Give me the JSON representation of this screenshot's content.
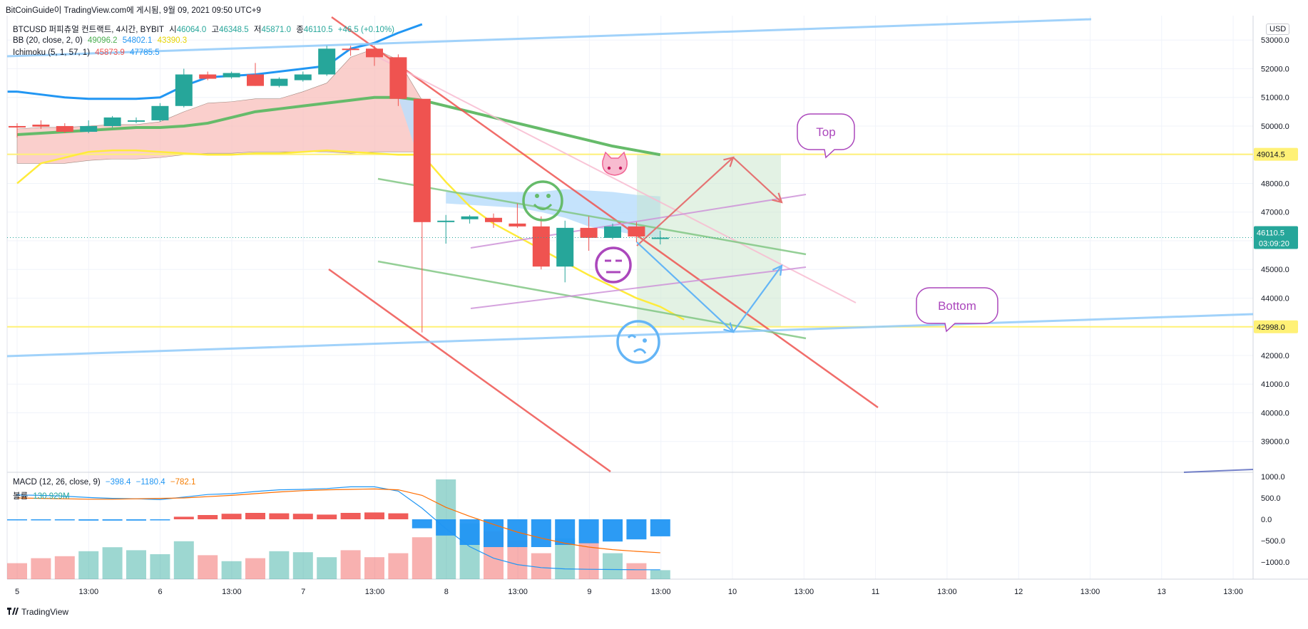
{
  "header": {
    "source": "BitCoinGuide이 TradingView.com에 게시됨, 9월 09, 2021 09:50 UTC+9"
  },
  "legend": {
    "symbol": "BTCUSD 퍼피츄얼 컨트랙트, 4시간, BYBIT",
    "open_label": "시",
    "open": "46064.0",
    "high_label": "고",
    "high": "46348.5",
    "low_label": "저",
    "low": "45871.0",
    "close_label": "종",
    "close": "46110.5",
    "change": "+46.5 (+0.10%)",
    "bb_name": "BB (20, close, 2, 0)",
    "bb_basis": "49096.2",
    "bb_upper": "54802.1",
    "bb_lower": "43390.3",
    "ichimoku_name": "Ichimoku (5, 1, 57, 1)",
    "ich_a": "45873.9",
    "ich_b": "47785.5",
    "macd_name": "MACD (12, 26, close, 9)",
    "macd_hist": "−398.4",
    "macd_line": "−1180.4",
    "macd_signal": "−782.1",
    "volume_name": "볼륨",
    "volume": "130.929M"
  },
  "currency_badge": "USD",
  "price_tags": {
    "last": "46110.5",
    "countdown": "03:09:20",
    "top_level": "49014.5",
    "bottom_level": "42998.0"
  },
  "annotations": {
    "top_label": "Top",
    "bottom_label": "Bottom"
  },
  "colors": {
    "up": "#26a69a",
    "down": "#ef5350",
    "bb": "#2196f3",
    "ichimoku_green": "#4caf50",
    "ichimoku_yellow": "#ffeb3b",
    "level": "#fff176",
    "cloud": "#f8bbb7",
    "zone": "#c8e6c9",
    "callout": "#ab47bc"
  },
  "chart_data": {
    "type": "candlestick",
    "price_axis": {
      "ticks": [
        53000,
        52000,
        51000,
        50000,
        49000,
        48000,
        47000,
        46000,
        45000,
        44000,
        43000,
        42000,
        41000,
        40000,
        39000
      ],
      "tick_labels": [
        "53000.0",
        "52000.0",
        "51000.0",
        "50000.0",
        "49000.0",
        "48000.0",
        "47000.0",
        "46000.0",
        "45000.0",
        "44000.0",
        "43000.0",
        "42000.0",
        "41000.0",
        "40000.0",
        "39000.0"
      ],
      "range": [
        37950,
        53850
      ]
    },
    "time_axis": {
      "labels": [
        "5",
        "13:00",
        "6",
        "13:00",
        "7",
        "13:00",
        "8",
        "13:00",
        "9",
        "13:00",
        "10",
        "13:00",
        "11",
        "13:00",
        "12",
        "13:00",
        "13",
        "13:00"
      ]
    },
    "candles": [
      {
        "o": 50000,
        "h": 50100,
        "l": 49600,
        "c": 49950
      },
      {
        "o": 50050,
        "h": 50200,
        "l": 49900,
        "c": 49980
      },
      {
        "o": 50000,
        "h": 50100,
        "l": 49750,
        "c": 49800
      },
      {
        "o": 49800,
        "h": 50200,
        "l": 49750,
        "c": 50000
      },
      {
        "o": 50000,
        "h": 50350,
        "l": 49950,
        "c": 50300
      },
      {
        "o": 50200,
        "h": 50300,
        "l": 50100,
        "c": 50200
      },
      {
        "o": 50200,
        "h": 50800,
        "l": 50150,
        "c": 50700
      },
      {
        "o": 50700,
        "h": 52000,
        "l": 50650,
        "c": 51800
      },
      {
        "o": 51800,
        "h": 51900,
        "l": 51600,
        "c": 51650
      },
      {
        "o": 51700,
        "h": 51900,
        "l": 51650,
        "c": 51850
      },
      {
        "o": 51800,
        "h": 52200,
        "l": 51400,
        "c": 51400
      },
      {
        "o": 51400,
        "h": 51700,
        "l": 51350,
        "c": 51650
      },
      {
        "o": 51600,
        "h": 51900,
        "l": 51550,
        "c": 51800
      },
      {
        "o": 51800,
        "h": 52800,
        "l": 51750,
        "c": 52700
      },
      {
        "o": 52700,
        "h": 52800,
        "l": 52450,
        "c": 52650
      },
      {
        "o": 52700,
        "h": 52800,
        "l": 52100,
        "c": 52400
      },
      {
        "o": 52400,
        "h": 52500,
        "l": 50700,
        "c": 50950
      },
      {
        "o": 50950,
        "h": 50950,
        "l": 42800,
        "c": 46650
      },
      {
        "o": 46650,
        "h": 46900,
        "l": 45900,
        "c": 46700
      },
      {
        "o": 46750,
        "h": 46900,
        "l": 46600,
        "c": 46850
      },
      {
        "o": 46800,
        "h": 46950,
        "l": 46450,
        "c": 46650
      },
      {
        "o": 46600,
        "h": 47300,
        "l": 46450,
        "c": 46500
      },
      {
        "o": 46500,
        "h": 46850,
        "l": 45000,
        "c": 45100
      },
      {
        "o": 45100,
        "h": 46700,
        "l": 44550,
        "c": 46450
      },
      {
        "o": 46450,
        "h": 46850,
        "l": 45650,
        "c": 46100
      },
      {
        "o": 46100,
        "h": 46600,
        "l": 46050,
        "c": 46500
      },
      {
        "o": 46500,
        "h": 46650,
        "l": 45950,
        "c": 46150
      },
      {
        "o": 46064,
        "h": 46348.5,
        "l": 45871,
        "c": 46110.5
      }
    ],
    "macd_axis": {
      "ticks": [
        1000,
        500,
        0,
        -500,
        -1000
      ],
      "tick_labels": [
        "1000.0",
        "500.0",
        "0.0",
        "−500.0",
        "−1000.0"
      ],
      "range": [
        -1400,
        1100
      ]
    },
    "macd_histogram": [
      -10,
      -15,
      -20,
      -30,
      -30,
      -30,
      -20,
      60,
      100,
      130,
      150,
      140,
      130,
      110,
      150,
      160,
      140,
      -210,
      -380,
      -600,
      -650,
      -650,
      -650,
      -600,
      -560,
      -520,
      -470,
      -398.4
    ],
    "macd_line": [
      570,
      560,
      540,
      510,
      490,
      480,
      460,
      520,
      580,
      600,
      650,
      690,
      700,
      720,
      760,
      760,
      660,
      260,
      -220,
      -640,
      -910,
      -1060,
      -1130,
      -1160,
      -1170,
      -1175,
      -1180,
      -1180.4
    ],
    "macd_signal": [
      500,
      490,
      480,
      470,
      470,
      480,
      490,
      500,
      530,
      560,
      600,
      640,
      670,
      690,
      700,
      710,
      690,
      560,
      280,
      70,
      -120,
      -300,
      -440,
      -560,
      -650,
      -710,
      -750,
      -782.1
    ],
    "volume_relative": [
      0.16,
      0.21,
      0.23,
      0.28,
      0.32,
      0.29,
      0.25,
      0.38,
      0.24,
      0.18,
      0.21,
      0.28,
      0.27,
      0.22,
      0.29,
      0.22,
      0.26,
      0.42,
      1.0,
      0.56,
      0.48,
      0.39,
      0.26,
      0.41,
      0.37,
      0.26,
      0.16,
      0.09
    ]
  }
}
